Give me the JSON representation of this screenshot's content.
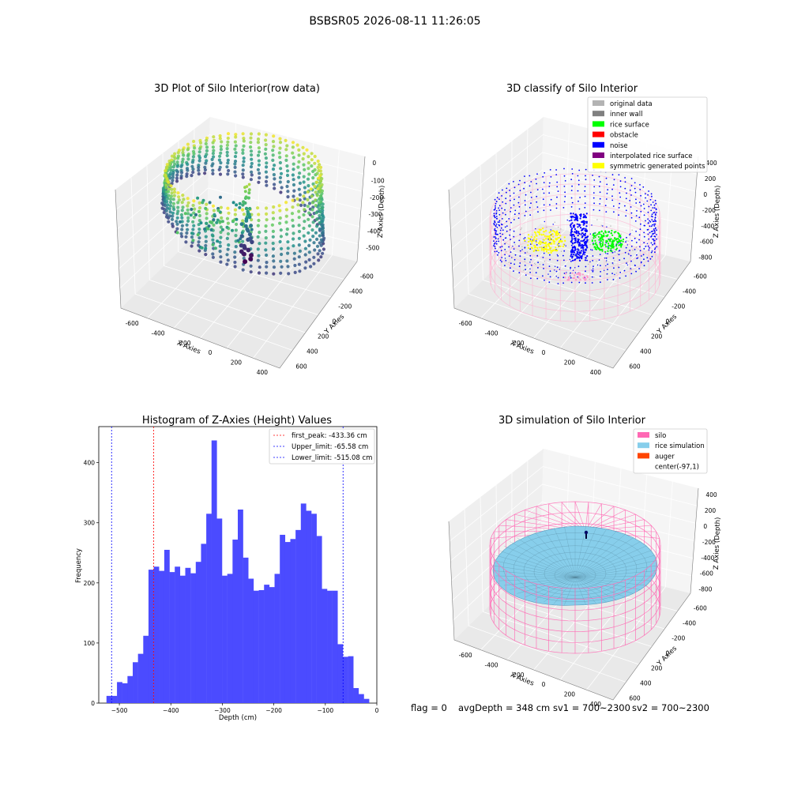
{
  "suptitle": "BSBSR05 2026-08-11 11:26:05",
  "panels": {
    "raw": {
      "title": "3D Plot of Silo Interior(row data)",
      "xlabel": "X Axies",
      "ylabel": "Y Axies",
      "zlabel": "Z Axies (Depth)",
      "xticks": [
        "-600",
        "-400",
        "-200",
        "0",
        "200",
        "400"
      ],
      "yticks": [
        "-600",
        "-400",
        "-200",
        "0",
        "200",
        "400",
        "600"
      ],
      "zticks": [
        "0",
        "-100",
        "-200",
        "-300",
        "-400",
        "-500"
      ],
      "colormap": "viridis"
    },
    "classify": {
      "title": "3D classify of Silo Interior",
      "xlabel": "X Axies",
      "ylabel": "Y Axies",
      "zlabel": "Z Axies (Depth)",
      "xticks": [
        "-600",
        "-400",
        "-200",
        "0",
        "200",
        "400"
      ],
      "yticks": [
        "-600",
        "-400",
        "-200",
        "0",
        "200",
        "400",
        "600"
      ],
      "zticks": [
        "400",
        "200",
        "0",
        "-200",
        "-400",
        "-600",
        "-800"
      ],
      "legend": [
        {
          "label": "original data",
          "color": "#b3b3b3"
        },
        {
          "label": "inner wall",
          "color": "#808080"
        },
        {
          "label": "rice surface",
          "color": "#00ff00"
        },
        {
          "label": "obstacle",
          "color": "#ff0000"
        },
        {
          "label": "noise",
          "color": "#0000ff"
        },
        {
          "label": "interpolated rice surface",
          "color": "#800080"
        },
        {
          "label": "symmetric generated points",
          "color": "#ffff00"
        }
      ],
      "silo_wire_color": "#ffb3d1"
    },
    "simulation": {
      "title": "3D simulation of Silo Interior",
      "xlabel": "X Axies",
      "ylabel": "Y Axies",
      "zlabel": "Z Axies (Depth)",
      "xticks": [
        "-600",
        "-400",
        "-200",
        "0",
        "200",
        "400"
      ],
      "yticks": [
        "-600",
        "-400",
        "-200",
        "0",
        "200",
        "400",
        "600"
      ],
      "zticks": [
        "400",
        "200",
        "0",
        "-200",
        "-400",
        "-600",
        "-800"
      ],
      "legend": [
        {
          "label": "silo",
          "color": "#ff69b4"
        },
        {
          "label": "rice simulation",
          "color": "#87ceeb"
        },
        {
          "label": "auger",
          "color": "#ff4500"
        },
        {
          "label": "center(-97,1)",
          "color": "none"
        }
      ]
    }
  },
  "status": {
    "flag": "flag = 0",
    "avg_depth": "avgDepth = 348 cm",
    "sv1": "sv1 = 700~2300",
    "sv2": "sv2 = 700~2300"
  },
  "chart_data": [
    {
      "type": "bar",
      "title": "Histogram of Z-Axies (Height) Values",
      "xlabel": "Depth (cm)",
      "ylabel": "Frequency",
      "xlim": [
        -540,
        0
      ],
      "ylim": [
        0,
        460
      ],
      "xticks": [
        -500,
        -400,
        -300,
        -200,
        -100,
        0
      ],
      "yticks": [
        0,
        100,
        200,
        300,
        400
      ],
      "bar_color": "#4b4bff",
      "bin_start": -525,
      "bin_width": 10.2,
      "values": [
        12,
        12,
        35,
        33,
        45,
        68,
        82,
        112,
        222,
        227,
        220,
        255,
        218,
        227,
        212,
        225,
        216,
        235,
        265,
        315,
        437,
        307,
        212,
        215,
        272,
        322,
        242,
        207,
        187,
        188,
        197,
        193,
        215,
        280,
        268,
        273,
        288,
        332,
        320,
        315,
        278,
        190,
        187,
        187,
        98,
        77,
        78,
        25,
        15,
        7
      ],
      "vlines": [
        {
          "label": "first_peak: -433.36 cm",
          "x": -433.36,
          "color": "#ff0000"
        },
        {
          "label": "Upper_limit: -65.58 cm",
          "x": -65.58,
          "color": "#0000ff"
        },
        {
          "label": "Lower_limit: -515.08 cm",
          "x": -515.08,
          "color": "#0000ff"
        }
      ],
      "legend_position": "upper right"
    }
  ]
}
